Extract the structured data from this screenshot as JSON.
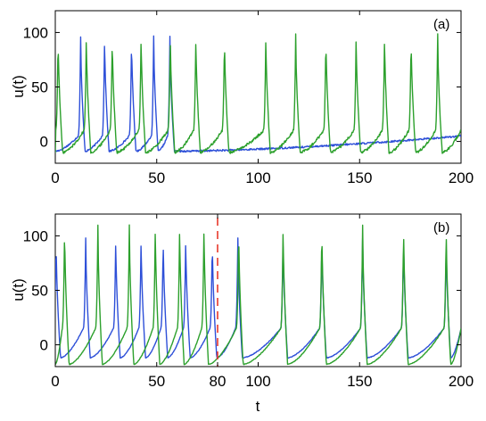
{
  "colors": {
    "blue": "#2d4fd8",
    "green": "#2ca02c",
    "marker": "#e8392b",
    "frame": "#000000"
  },
  "chart_data": [
    {
      "type": "line",
      "panel_label": "(a)",
      "xlabel": "",
      "ylabel": "u(t)",
      "xlim": [
        0,
        200
      ],
      "ylim": [
        -20,
        120
      ],
      "x_ticks": [
        0,
        50,
        100,
        150,
        200
      ],
      "y_ticks": [
        0,
        50,
        100
      ],
      "grid": false,
      "series": [
        {
          "color": "blue",
          "spike_times": [
            12.5,
            24.3,
            37.6,
            48.5,
            56.5
          ],
          "baseline": [
            -9,
            5
          ],
          "peak": 96
        },
        {
          "color": "green",
          "spike_times": [
            1.4,
            15.3,
            28.1,
            42.3,
            56.7,
            69.3,
            83.4,
            103.8,
            118.5,
            133.4,
            148.3,
            162.3,
            175.4,
            188.5
          ],
          "baseline": [
            -10,
            10
          ],
          "peak": 98
        }
      ],
      "end_value": 8
    },
    {
      "type": "line",
      "panel_label": "(b)",
      "xlabel": "t",
      "ylabel": "u(t)",
      "xlim": [
        0,
        200
      ],
      "ylim": [
        -20,
        120
      ],
      "x_ticks": [
        0,
        50,
        80,
        100,
        150,
        200
      ],
      "y_ticks": [
        0,
        50,
        100
      ],
      "grid": false,
      "marker_line_x": 80,
      "series": [
        {
          "color": "blue",
          "spike_times": [
            0.4,
            15.0,
            29.8,
            42.3,
            53.2,
            64.3,
            77.4,
            90.0,
            112.3,
            131.4,
            151.5,
            171.7,
            192.7
          ],
          "baseline": [
            -12,
            15
          ],
          "peak": 98
        },
        {
          "color": "green",
          "spike_times": [
            4.6,
            21.0,
            36.5,
            49.3,
            61.3,
            73.3,
            90.4,
            112.3,
            131.4,
            151.5,
            171.7,
            192.7
          ],
          "baseline": [
            -18,
            15
          ],
          "peak": 110
        }
      ]
    }
  ]
}
